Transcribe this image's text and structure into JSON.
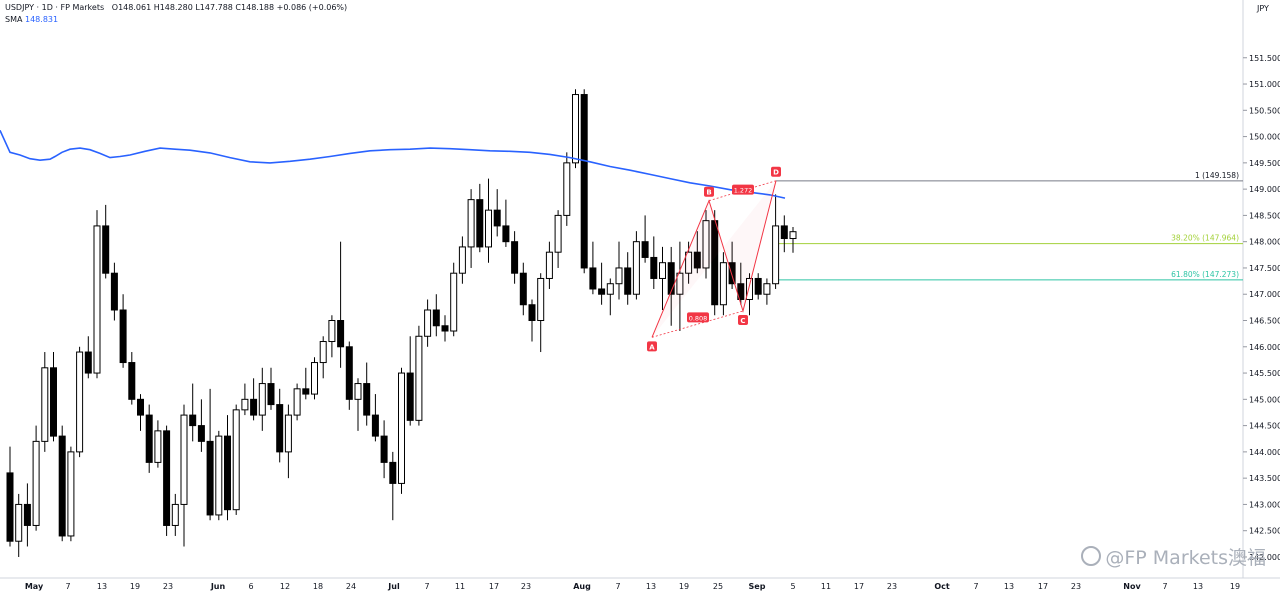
{
  "header": {
    "symbol_line": "USDJPY · 1D · FP Markets",
    "ohlc_line": "O148.061  H148.280  L147.788  C148.188  +0.086 (+0.06%)",
    "sma_label": "SMA",
    "sma_value": "148.831"
  },
  "watermark": "@FP Markets澳福",
  "colors": {
    "sma": "#2962ff",
    "pattern": "#f23645",
    "fib_top": "#787b86",
    "fib_382": "#a3d139",
    "fib_618": "#2ec4a5",
    "up_candle": "#ffffff",
    "down_candle": "#000000"
  },
  "chart_data": {
    "type": "candlestick",
    "currency": "JPY",
    "ylim": [
      141.6,
      151.9
    ],
    "y_ticks": [
      "151.500",
      "151.000",
      "150.500",
      "150.000",
      "149.500",
      "149.000",
      "148.500",
      "148.000",
      "147.500",
      "147.000",
      "146.500",
      "146.000",
      "145.500",
      "145.000",
      "144.500",
      "144.000",
      "143.500",
      "143.000",
      "142.500",
      "142.000"
    ],
    "x_ticks": [
      "May",
      "7",
      "13",
      "19",
      "23",
      "Jun",
      "6",
      "12",
      "18",
      "24",
      "Jul",
      "7",
      "11",
      "17",
      "23",
      "Aug",
      "7",
      "13",
      "19",
      "25",
      "Sep",
      "5",
      "11",
      "17",
      "23",
      "Oct",
      "7",
      "13",
      "17",
      "23",
      "Nov",
      "7",
      "13",
      "19"
    ],
    "ohlc": [
      [
        143.6,
        144.1,
        142.2,
        142.3
      ],
      [
        142.3,
        143.2,
        142.0,
        143.0
      ],
      [
        143.0,
        143.4,
        142.2,
        142.6
      ],
      [
        142.6,
        144.5,
        142.5,
        144.2
      ],
      [
        144.2,
        145.9,
        144.0,
        145.6
      ],
      [
        145.6,
        145.9,
        144.2,
        144.3
      ],
      [
        144.3,
        144.5,
        142.3,
        142.4
      ],
      [
        142.4,
        144.1,
        142.3,
        144.0
      ],
      [
        144.0,
        146.0,
        143.9,
        145.9
      ],
      [
        145.9,
        146.2,
        145.4,
        145.5
      ],
      [
        145.5,
        148.6,
        145.4,
        148.3
      ],
      [
        148.3,
        148.7,
        147.3,
        147.4
      ],
      [
        147.4,
        147.6,
        146.5,
        146.7
      ],
      [
        146.7,
        147.0,
        145.6,
        145.7
      ],
      [
        145.7,
        145.9,
        144.9,
        145.0
      ],
      [
        145.0,
        145.1,
        144.4,
        144.7
      ],
      [
        144.7,
        144.9,
        143.6,
        143.8
      ],
      [
        143.8,
        144.6,
        143.7,
        144.4
      ],
      [
        144.4,
        144.5,
        142.4,
        142.6
      ],
      [
        142.6,
        143.2,
        142.4,
        143.0
      ],
      [
        143.0,
        144.9,
        142.2,
        144.7
      ],
      [
        144.7,
        145.3,
        144.2,
        144.5
      ],
      [
        144.5,
        145.0,
        144.0,
        144.2
      ],
      [
        144.2,
        145.2,
        142.7,
        142.8
      ],
      [
        142.8,
        144.4,
        142.7,
        144.3
      ],
      [
        144.3,
        144.7,
        142.7,
        142.9
      ],
      [
        142.9,
        144.9,
        142.8,
        144.8
      ],
      [
        144.8,
        145.3,
        144.7,
        145.0
      ],
      [
        145.0,
        145.4,
        144.6,
        144.7
      ],
      [
        144.7,
        145.6,
        144.4,
        145.3
      ],
      [
        145.3,
        145.6,
        144.8,
        144.9
      ],
      [
        144.9,
        145.2,
        143.8,
        144.0
      ],
      [
        144.0,
        144.9,
        143.5,
        144.7
      ],
      [
        144.7,
        145.3,
        144.6,
        145.2
      ],
      [
        145.2,
        145.6,
        145.0,
        145.1
      ],
      [
        145.1,
        145.8,
        145.0,
        145.7
      ],
      [
        145.7,
        146.2,
        145.4,
        146.1
      ],
      [
        146.1,
        146.6,
        145.8,
        146.5
      ],
      [
        146.5,
        148.0,
        145.6,
        146.0
      ],
      [
        146.0,
        146.1,
        144.8,
        145.0
      ],
      [
        145.0,
        145.4,
        144.4,
        145.3
      ],
      [
        145.3,
        145.7,
        144.5,
        144.7
      ],
      [
        144.7,
        145.1,
        144.2,
        144.3
      ],
      [
        144.3,
        144.6,
        143.5,
        143.8
      ],
      [
        143.8,
        144.0,
        142.7,
        143.4
      ],
      [
        143.4,
        145.6,
        143.2,
        145.5
      ],
      [
        145.5,
        146.2,
        144.5,
        144.6
      ],
      [
        144.6,
        146.4,
        144.5,
        146.2
      ],
      [
        146.2,
        146.9,
        146.0,
        146.7
      ],
      [
        146.7,
        147.0,
        146.2,
        146.4
      ],
      [
        146.4,
        146.6,
        146.1,
        146.3
      ],
      [
        146.3,
        147.6,
        146.2,
        147.4
      ],
      [
        147.4,
        148.1,
        147.2,
        147.9
      ],
      [
        147.9,
        149.0,
        147.5,
        148.8
      ],
      [
        148.8,
        149.1,
        147.8,
        147.9
      ],
      [
        147.9,
        149.2,
        147.6,
        148.6
      ],
      [
        148.6,
        149.0,
        148.1,
        148.3
      ],
      [
        148.3,
        148.8,
        147.9,
        148.0
      ],
      [
        148.0,
        148.2,
        147.2,
        147.4
      ],
      [
        147.4,
        147.6,
        146.6,
        146.8
      ],
      [
        146.8,
        146.9,
        146.1,
        146.5
      ],
      [
        146.5,
        147.4,
        145.9,
        147.3
      ],
      [
        147.3,
        148.0,
        147.1,
        147.8
      ],
      [
        147.8,
        148.6,
        147.5,
        148.5
      ],
      [
        148.5,
        149.7,
        148.3,
        149.5
      ],
      [
        149.5,
        150.9,
        149.4,
        150.8
      ],
      [
        150.8,
        150.9,
        147.4,
        147.5
      ],
      [
        147.5,
        148.0,
        147.0,
        147.1
      ],
      [
        147.1,
        147.6,
        146.8,
        147.0
      ],
      [
        147.0,
        147.3,
        146.6,
        147.2
      ],
      [
        147.2,
        148.0,
        146.9,
        147.5
      ],
      [
        147.5,
        147.8,
        146.8,
        147.0
      ],
      [
        147.0,
        148.2,
        146.9,
        148.0
      ],
      [
        148.0,
        148.5,
        147.6,
        147.7
      ],
      [
        147.7,
        148.1,
        147.1,
        147.3
      ],
      [
        147.3,
        147.9,
        146.7,
        147.6
      ],
      [
        147.6,
        147.9,
        146.4,
        147.0
      ],
      [
        147.0,
        148.0,
        146.3,
        147.4
      ],
      [
        147.4,
        148.0,
        147.2,
        147.8
      ],
      [
        147.8,
        148.2,
        147.4,
        147.5
      ],
      [
        147.5,
        148.6,
        147.3,
        148.4
      ],
      [
        148.4,
        148.6,
        146.6,
        146.8
      ],
      [
        146.8,
        147.8,
        146.6,
        147.6
      ],
      [
        147.6,
        148.0,
        147.1,
        147.2
      ],
      [
        147.2,
        147.6,
        146.8,
        146.9
      ],
      [
        146.9,
        147.4,
        146.6,
        147.3
      ],
      [
        147.3,
        147.4,
        146.9,
        147.0
      ],
      [
        147.0,
        147.3,
        146.8,
        147.2
      ],
      [
        147.2,
        148.9,
        147.1,
        148.3
      ],
      [
        148.3,
        148.5,
        147.8,
        148.06
      ],
      [
        148.06,
        148.28,
        147.79,
        148.19
      ]
    ],
    "sma": [
      [
        0,
        150.12
      ],
      [
        10,
        149.7
      ],
      [
        20,
        149.65
      ],
      [
        30,
        149.58
      ],
      [
        40,
        149.55
      ],
      [
        50,
        149.57
      ],
      [
        55,
        149.62
      ],
      [
        62,
        149.7
      ],
      [
        70,
        149.76
      ],
      [
        80,
        149.78
      ],
      [
        90,
        149.75
      ],
      [
        100,
        149.68
      ],
      [
        110,
        149.6
      ],
      [
        120,
        149.62
      ],
      [
        130,
        149.65
      ],
      [
        145,
        149.72
      ],
      [
        160,
        149.78
      ],
      [
        175,
        149.76
      ],
      [
        190,
        149.74
      ],
      [
        210,
        149.69
      ],
      [
        230,
        149.6
      ],
      [
        250,
        149.52
      ],
      [
        270,
        149.5
      ],
      [
        290,
        149.53
      ],
      [
        310,
        149.57
      ],
      [
        330,
        149.62
      ],
      [
        350,
        149.68
      ],
      [
        370,
        149.73
      ],
      [
        390,
        149.75
      ],
      [
        410,
        149.76
      ],
      [
        430,
        149.78
      ],
      [
        450,
        149.77
      ],
      [
        470,
        149.75
      ],
      [
        490,
        149.73
      ],
      [
        510,
        149.72
      ],
      [
        530,
        149.7
      ],
      [
        550,
        149.66
      ],
      [
        570,
        149.6
      ],
      [
        590,
        149.52
      ],
      [
        610,
        149.43
      ],
      [
        630,
        149.36
      ],
      [
        650,
        149.28
      ],
      [
        670,
        149.2
      ],
      [
        690,
        149.12
      ],
      [
        710,
        149.06
      ],
      [
        730,
        148.99
      ],
      [
        750,
        148.94
      ],
      [
        770,
        148.89
      ],
      [
        785,
        148.83
      ]
    ],
    "pattern_points": [
      {
        "label": "A",
        "x": 652,
        "price": 146.18
      },
      {
        "label": "B",
        "x": 709,
        "price": 148.78
      },
      {
        "label": "C",
        "x": 743,
        "price": 146.68
      },
      {
        "label": "D",
        "x": 776,
        "price": 149.16
      }
    ],
    "pattern_ratios": [
      {
        "text": "0.808",
        "x": 698,
        "price": 146.56
      },
      {
        "text": "1.272",
        "x": 743,
        "price": 148.99
      }
    ],
    "fib_levels": [
      {
        "label": "1 (149.158)",
        "price": 149.158,
        "color_key": "fib_top"
      },
      {
        "label": "38.20% (147.964)",
        "price": 147.964,
        "color_key": "fib_382"
      },
      {
        "label": "61.80% (147.273)",
        "price": 147.273,
        "color_key": "fib_618"
      }
    ]
  }
}
